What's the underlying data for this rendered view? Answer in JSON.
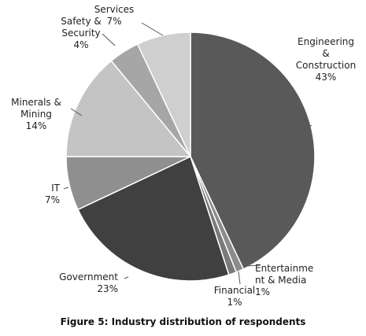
{
  "caption": "Figure 5: Industry distribution of respondents",
  "chart_data": {
    "type": "pie",
    "title": "",
    "start_angle_deg": 0,
    "direction": "clockwise",
    "slices": [
      {
        "label": "Engineering & Construction",
        "display_lines": [
          "Engineering",
          "&",
          "Construction"
        ],
        "pct_text": "43%",
        "value": 43,
        "color": "#595959"
      },
      {
        "label": "Entertainment & Media",
        "display_lines": [
          "Entertainme",
          "nt & Media"
        ],
        "pct_text": "1%",
        "value": 1,
        "color": "#8c8c8c"
      },
      {
        "label": "Financial",
        "display_lines": [
          "Financial"
        ],
        "pct_text": "1%",
        "value": 1,
        "color": "#7a7a7a"
      },
      {
        "label": "Government",
        "display_lines": [
          "Government"
        ],
        "pct_text": "23%",
        "value": 23,
        "color": "#404040"
      },
      {
        "label": "IT",
        "display_lines": [
          "IT"
        ],
        "pct_text": "7%",
        "value": 7,
        "color": "#8f8f8f"
      },
      {
        "label": "Minerals & Mining",
        "display_lines": [
          "Minerals &",
          "Mining"
        ],
        "pct_text": "14%",
        "value": 14,
        "color": "#c4c4c4"
      },
      {
        "label": "Safety & Security",
        "display_lines": [
          "Safety &",
          "Security"
        ],
        "pct_text": "4%",
        "value": 4,
        "color": "#a6a6a6"
      },
      {
        "label": "Services",
        "display_lines": [
          "Services"
        ],
        "pct_text": "7%",
        "value": 7,
        "color": "#cfcfcf"
      }
    ]
  }
}
